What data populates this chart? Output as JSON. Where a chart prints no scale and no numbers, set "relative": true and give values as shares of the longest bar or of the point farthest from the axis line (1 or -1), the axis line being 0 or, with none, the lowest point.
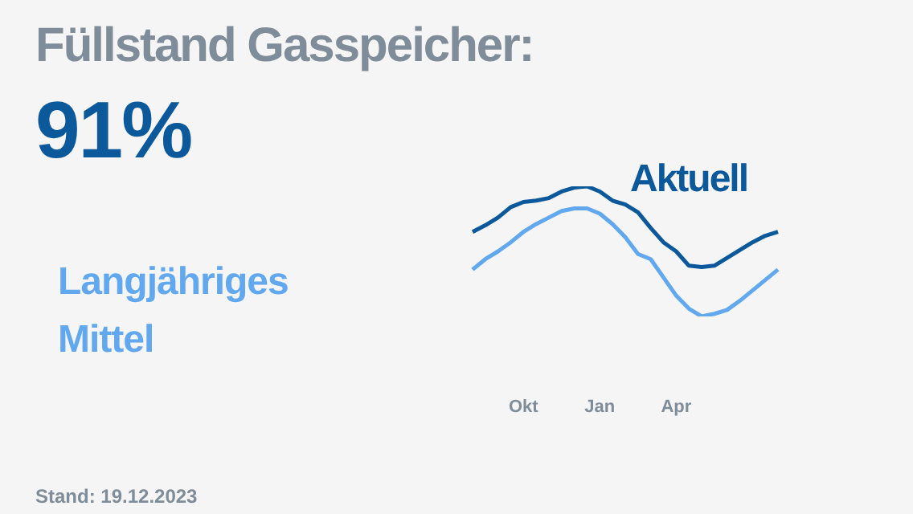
{
  "chart_data": {
    "type": "line",
    "title": "Füllstand Gasspeicher:",
    "subtitle": "91%",
    "relative": true,
    "legend": false,
    "grid": false,
    "tick_labels": "x",
    "marker": "none",
    "line_style": "solid",
    "categories": [
      null,
      null,
      null,
      null,
      "Okt",
      null,
      null,
      null,
      null,
      null,
      "Jan",
      null,
      null,
      null,
      null,
      null,
      "Apr",
      null,
      null,
      null,
      null,
      null,
      null,
      null,
      null
    ],
    "series": [
      {
        "name": "Aktuell",
        "color": "#0b589b",
        "values": [
          0.65,
          0.7,
          0.76,
          0.84,
          0.88,
          0.89,
          0.91,
          0.96,
          0.99,
          1,
          0.96,
          0.89,
          0.86,
          0.8,
          0.68,
          0.57,
          0.5,
          0.39,
          0.38,
          0.39,
          0.45,
          0.51,
          0.57,
          0.62,
          0.65
        ]
      },
      {
        "name": "Langjähriges Mittel",
        "color": "#62a8ee",
        "values": [
          0.36,
          0.44,
          0.5,
          0.57,
          0.65,
          0.71,
          0.76,
          0.81,
          0.83,
          0.83,
          0.79,
          0.71,
          0.61,
          0.48,
          0.44,
          0.3,
          0.16,
          0.06,
          0,
          0.02,
          0.05,
          0.12,
          0.2,
          0.28,
          0.36
        ]
      }
    ],
    "annotations": [
      "Stand: 19.12.2023"
    ]
  }
}
